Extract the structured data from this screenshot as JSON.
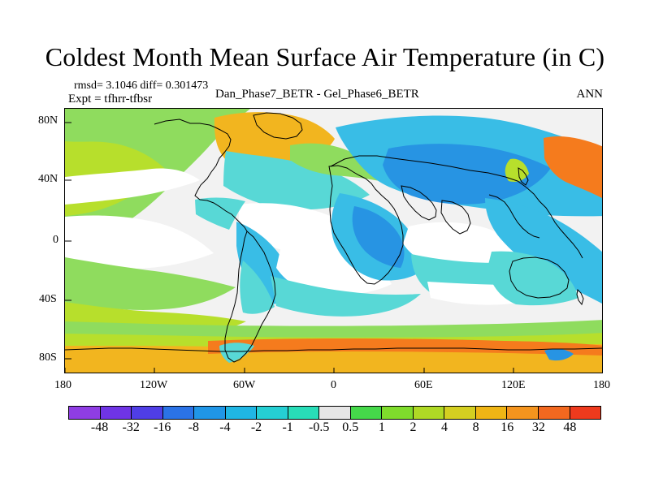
{
  "title": "Coldest Month Mean Surface Air Temperature (in C)",
  "meta": {
    "rmsd_line": "rmsd= 3.1046 diff= 0.301473",
    "expt_line": "Expt = tfhrr-tfbsr",
    "comparison_line": "Dan_Phase7_BETR - Gel_Phase6_BETR",
    "season": "ANN"
  },
  "map": {
    "lat_labels": [
      "80N",
      "40N",
      "0",
      "40S",
      "80S"
    ],
    "lon_labels": [
      "180",
      "120W",
      "60W",
      "0",
      "60E",
      "120E",
      "180"
    ],
    "colors": {
      "ocean_background": "#f2f2f2",
      "cool_light": "#58d8d6",
      "cool_mid": "#39bde6",
      "cool_deep": "#2794e3",
      "warm_light": "#8fdc5e",
      "warm_mid": "#b7df2c",
      "warm_high": "#f2b51f",
      "warm_very_high": "#f57b1d",
      "white_band": "#ffffff"
    }
  },
  "colorbar": {
    "colors": [
      "#8f3de4",
      "#6f34e5",
      "#4f3ee6",
      "#2b73e7",
      "#2096e7",
      "#20b6e4",
      "#25cfd3",
      "#28ddb8",
      "#e6e6e6",
      "#45d84a",
      "#7fdc2c",
      "#afd925",
      "#d4cf21",
      "#efb515",
      "#f4941e",
      "#f2681f",
      "#ee3a1d"
    ],
    "labels": [
      "-48",
      "-32",
      "-16",
      "-8",
      "-4",
      "-2",
      "-1",
      "-0.5",
      "0.5",
      "1",
      "2",
      "4",
      "8",
      "16",
      "32",
      "48"
    ]
  }
}
